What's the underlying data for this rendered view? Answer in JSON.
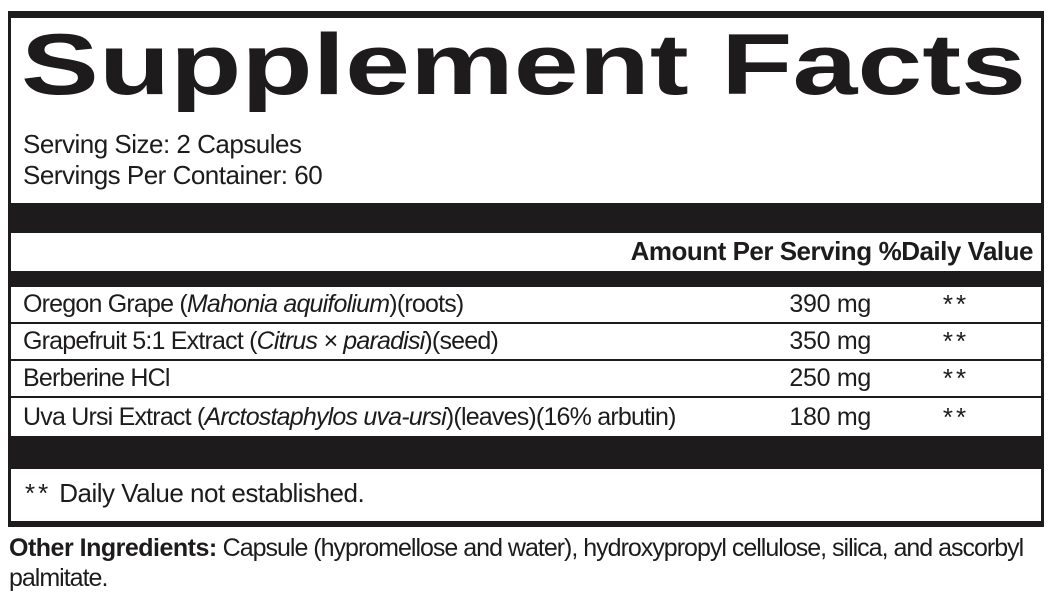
{
  "colors": {
    "ink": "#1d1b1b",
    "background": "#ffffff"
  },
  "label": {
    "title": "Supplement Facts",
    "serving_size": "Serving Size: 2 Capsules",
    "servings_per_container": "Servings Per Container: 60",
    "columns": {
      "amount": "Amount Per Serving",
      "daily_value": "%Daily Value"
    },
    "ingredients": [
      {
        "name_prefix": "Oregon Grape (",
        "latin": "Mahonia aquifolium",
        "name_suffix": ")(roots)",
        "amount": "390 mg",
        "daily_value": "**"
      },
      {
        "name_prefix": "Grapefruit 5:1 Extract (",
        "latin": "Citrus × paradisi",
        "name_suffix": ")(seed)",
        "amount": "350 mg",
        "daily_value": "**"
      },
      {
        "name_prefix": "Berberine HCl",
        "latin": "",
        "name_suffix": "",
        "amount": "250 mg",
        "daily_value": "**"
      },
      {
        "name_prefix": "Uva Ursi Extract (",
        "latin": "Arctostaphylos uva-ursi",
        "name_suffix": ")(leaves)(16% arbutin)",
        "amount": "180 mg",
        "daily_value": "**"
      }
    ],
    "footnote": {
      "symbol": "**",
      "text": "Daily Value not established."
    },
    "other_ingredients": {
      "label": "Other Ingredients:",
      "text": "Capsule (hypromellose and water), hydroxypropyl cellulose, silica, and ascorbyl palmitate."
    }
  }
}
